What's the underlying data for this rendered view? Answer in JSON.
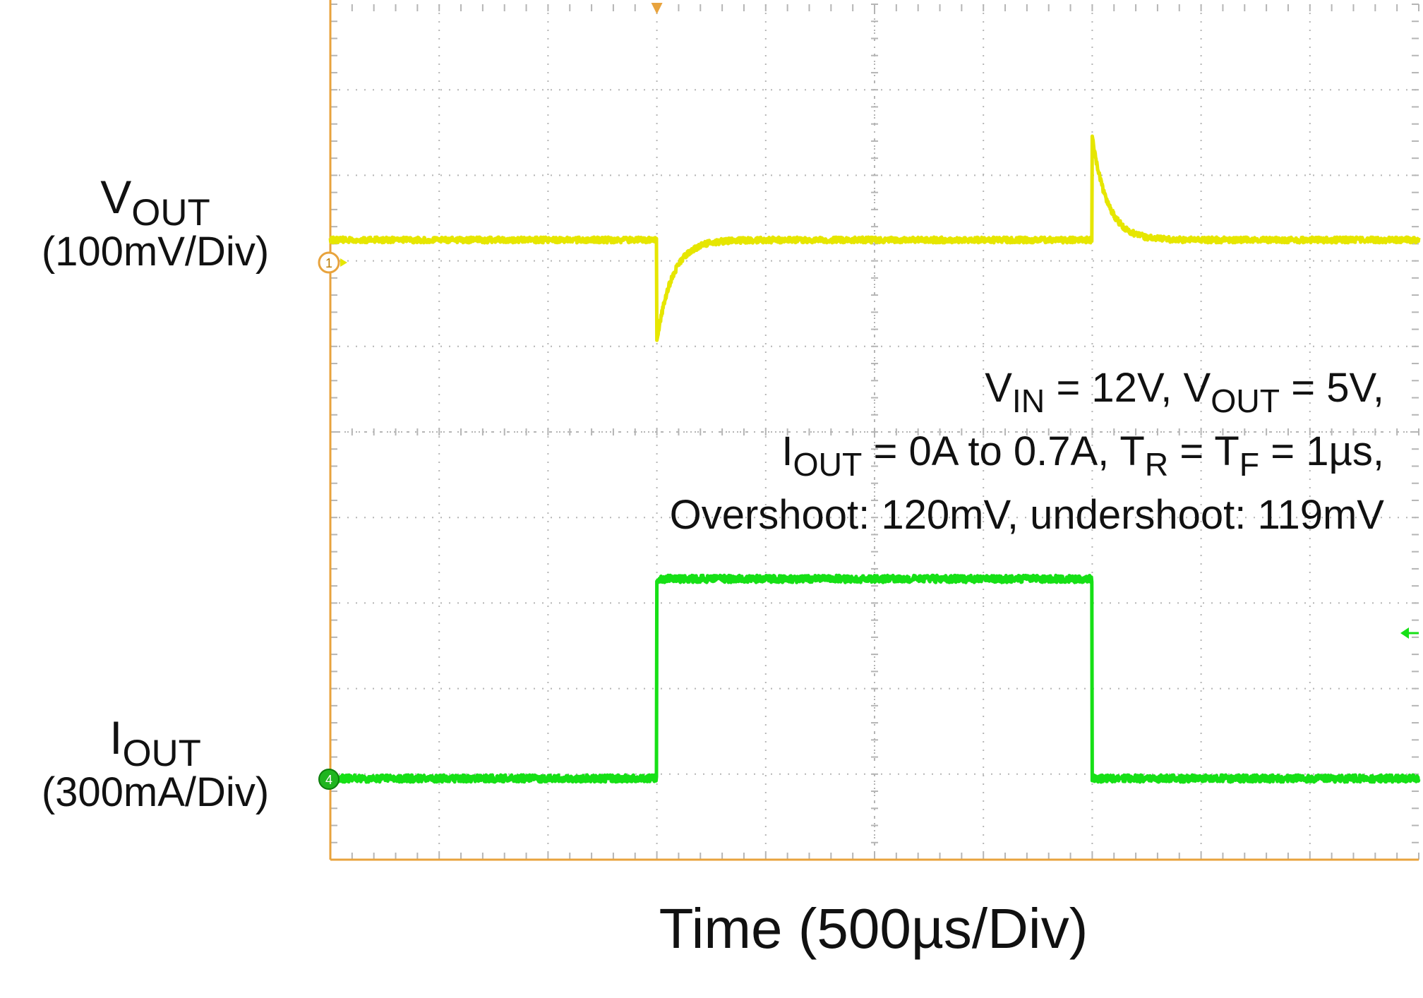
{
  "chart_data": {
    "type": "line",
    "x_label": "Time (500µs/Div)",
    "x_div_units": "µs",
    "x_per_div": 500,
    "x_range": [
      0,
      5000
    ],
    "grid": true,
    "grid_divisions": {
      "horizontal": 10,
      "vertical": 10
    },
    "colors": {
      "frame": "#e8a33d",
      "grid": "#b5b5b5",
      "vout": "#e6e600",
      "iout": "#16e016"
    },
    "series": [
      {
        "channel": "1",
        "label_main": "V",
        "label_sub": "OUT",
        "scale": "(100mV/Div)",
        "unit": "mV",
        "per_div": 100,
        "baseline": 0,
        "step_times": [
          1500,
          3500
        ],
        "events": [
          {
            "t": 1500,
            "deviation": -119
          },
          {
            "t": 3500,
            "deviation": 120
          }
        ]
      },
      {
        "channel": "4",
        "label_main": "I",
        "label_sub": "OUT",
        "scale": "(300mA/Div)",
        "unit": "A",
        "per_div": 0.3,
        "low": 0,
        "high": 0.7,
        "step_times": [
          1500,
          3500
        ]
      }
    ],
    "annotation": {
      "line1": [
        {
          "t": "V"
        },
        {
          "sub": "IN"
        },
        {
          "t": " = 12V, V"
        },
        {
          "sub": "OUT"
        },
        {
          "t": " = 5V,"
        }
      ],
      "line2": [
        {
          "t": "I"
        },
        {
          "sub": "OUT"
        },
        {
          "t": " = 0A to 0.7A, T"
        },
        {
          "sub": "R"
        },
        {
          "t": " = T"
        },
        {
          "sub": "F"
        },
        {
          "t": " = 1µs,"
        }
      ],
      "line3": [
        {
          "t": "Overshoot: 120mV, undershoot: 119mV"
        }
      ]
    }
  }
}
